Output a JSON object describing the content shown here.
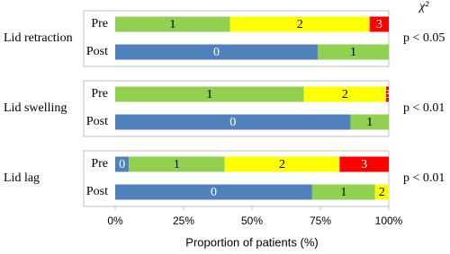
{
  "chart_data": [
    {
      "type": "bar",
      "orientation": "horizontal",
      "stacked": true,
      "title": "Lid retraction",
      "annotation": "p < 0.05",
      "annotation_header": "χ²",
      "categories": [
        "Pre",
        "Post"
      ],
      "xlim": [
        0,
        100
      ],
      "series": [
        {
          "name": "0",
          "color": "#4f81bd",
          "label_color": "#ffffff",
          "values": [
            0,
            74
          ]
        },
        {
          "name": "1",
          "color": "#92d050",
          "label_color": "#000000",
          "values": [
            42,
            26
          ]
        },
        {
          "name": "2",
          "color": "#ffff00",
          "label_color": "#000000",
          "values": [
            51,
            0
          ]
        },
        {
          "name": "3",
          "color": "#ff0000",
          "label_color": "#ffffff",
          "values": [
            7,
            0
          ]
        }
      ]
    },
    {
      "type": "bar",
      "orientation": "horizontal",
      "stacked": true,
      "title": "Lid swelling",
      "annotation": "p < 0.01",
      "categories": [
        "Pre",
        "Post"
      ],
      "xlim": [
        0,
        100
      ],
      "series": [
        {
          "name": "0",
          "color": "#4f81bd",
          "label_color": "#ffffff",
          "values": [
            0,
            86
          ]
        },
        {
          "name": "1",
          "color": "#92d050",
          "label_color": "#000000",
          "values": [
            69,
            14
          ]
        },
        {
          "name": "2",
          "color": "#ffff00",
          "label_color": "#000000",
          "values": [
            30,
            0
          ]
        },
        {
          "name": "3",
          "color": "#ff0000",
          "label_color": "#ffffff",
          "values": [
            1,
            0
          ]
        }
      ]
    },
    {
      "type": "bar",
      "orientation": "horizontal",
      "stacked": true,
      "title": "Lid lag",
      "annotation": "p < 0.01",
      "categories": [
        "Pre",
        "Post"
      ],
      "xlim": [
        0,
        100
      ],
      "xticks": [
        {
          "value": 0,
          "label": "0%"
        },
        {
          "value": 25,
          "label": "25%"
        },
        {
          "value": 50,
          "label": "50%"
        },
        {
          "value": 75,
          "label": "75%"
        },
        {
          "value": 100,
          "label": "100%"
        }
      ],
      "xlabel": "Proportion of patients (%)",
      "series": [
        {
          "name": "0",
          "color": "#4f81bd",
          "label_color": "#ffffff",
          "values": [
            5,
            72
          ]
        },
        {
          "name": "1",
          "color": "#92d050",
          "label_color": "#000000",
          "values": [
            35,
            23
          ]
        },
        {
          "name": "2",
          "color": "#ffff00",
          "label_color": "#000000",
          "values": [
            42,
            5
          ]
        },
        {
          "name": "3",
          "color": "#ff0000",
          "label_color": "#ffffff",
          "values": [
            18,
            0
          ]
        }
      ]
    }
  ]
}
